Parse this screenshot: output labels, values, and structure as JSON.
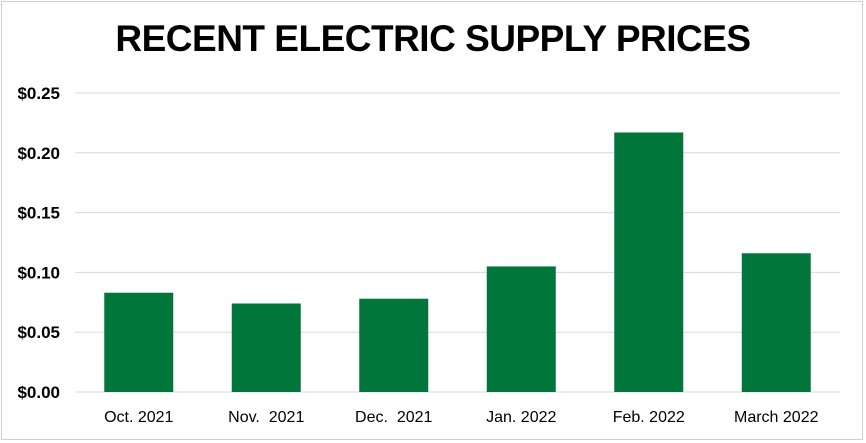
{
  "chart_data": {
    "type": "bar",
    "title": "RECENT ELECTRIC SUPPLY PRICES",
    "xlabel": "",
    "ylabel": "",
    "categories": [
      "Oct. 2021",
      "Nov.  2021",
      "Dec.  2021",
      "Jan. 2022",
      "Feb. 2022",
      "March 2022"
    ],
    "values": [
      0.083,
      0.074,
      0.078,
      0.105,
      0.217,
      0.116
    ],
    "ylim": [
      0,
      0.25
    ],
    "yticks": [
      0,
      0.05,
      0.1,
      0.15,
      0.2,
      0.25
    ],
    "ytick_labels": [
      "$0.00",
      "$0.05",
      "$0.10",
      "$0.15",
      "$0.20",
      "$0.25"
    ],
    "grid": true,
    "bar_color": "#00763A",
    "grid_color": "#d9d9d9"
  }
}
